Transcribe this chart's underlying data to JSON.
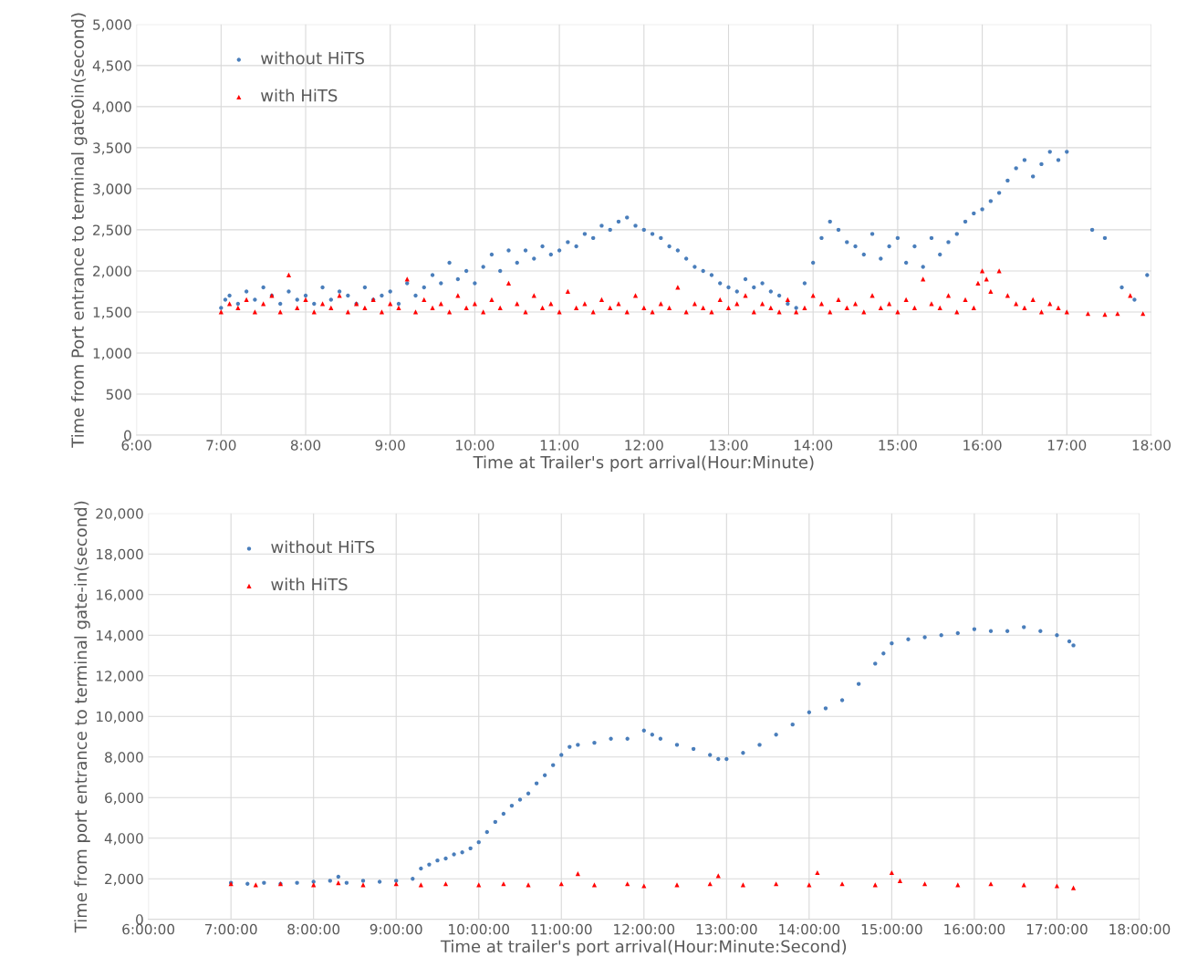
{
  "chart_data": [
    {
      "type": "scatter",
      "xlabel": "Time at Trailer's port arrival(Hour:Minute)",
      "ylabel": "Time from Port entrance to terminal gate0in(second)",
      "xlim": [
        6,
        18
      ],
      "ylim": [
        0,
        5000
      ],
      "xticks": [
        {
          "value": 6,
          "label": "6:00"
        },
        {
          "value": 7,
          "label": "7:00"
        },
        {
          "value": 8,
          "label": "8:00"
        },
        {
          "value": 9,
          "label": "9:00"
        },
        {
          "value": 10,
          "label": "10:00"
        },
        {
          "value": 11,
          "label": "11:00"
        },
        {
          "value": 12,
          "label": "12:00"
        },
        {
          "value": 13,
          "label": "13:00"
        },
        {
          "value": 14,
          "label": "14:00"
        },
        {
          "value": 15,
          "label": "15:00"
        },
        {
          "value": 16,
          "label": "16:00"
        },
        {
          "value": 17,
          "label": "17:00"
        },
        {
          "value": 18,
          "label": "18:00"
        }
      ],
      "yticks": [
        0,
        500,
        {
          "value": 1000,
          "label": "1,000"
        },
        {
          "value": 1500,
          "label": "1,500"
        },
        {
          "value": 2000,
          "label": "2,000"
        },
        {
          "value": 2500,
          "label": "2,500"
        },
        {
          "value": 3000,
          "label": "3,000"
        },
        {
          "value": 3500,
          "label": "3,500"
        },
        {
          "value": 4000,
          "label": "4,000"
        },
        {
          "value": 4500,
          "label": "4,500"
        },
        {
          "value": 5000,
          "label": "5,000"
        }
      ],
      "grid": true,
      "legend": "top left",
      "series": [
        {
          "name": "without HiTS",
          "color": "#4a7ebb",
          "marker": "circle",
          "x": [
            7.0,
            7.05,
            7.1,
            7.2,
            7.3,
            7.4,
            7.5,
            7.6,
            7.7,
            7.8,
            7.9,
            8.0,
            8.1,
            8.2,
            8.3,
            8.4,
            8.5,
            8.6,
            8.7,
            8.8,
            8.9,
            9.0,
            9.1,
            9.2,
            9.3,
            9.4,
            9.5,
            9.6,
            9.7,
            9.8,
            9.9,
            10.0,
            10.1,
            10.2,
            10.3,
            10.4,
            10.5,
            10.6,
            10.7,
            10.8,
            10.9,
            11.0,
            11.1,
            11.2,
            11.3,
            11.4,
            11.5,
            11.6,
            11.7,
            11.8,
            11.9,
            12.0,
            12.1,
            12.2,
            12.3,
            12.4,
            12.5,
            12.6,
            12.7,
            12.8,
            12.9,
            13.0,
            13.1,
            13.2,
            13.3,
            13.4,
            13.5,
            13.6,
            13.7,
            13.8,
            13.9,
            14.0,
            14.1,
            14.2,
            14.3,
            14.4,
            14.5,
            14.6,
            14.7,
            14.8,
            14.9,
            15.0,
            15.1,
            15.2,
            15.3,
            15.4,
            15.5,
            15.6,
            15.7,
            15.8,
            15.9,
            16.0,
            16.1,
            16.2,
            16.3,
            16.4,
            16.5,
            16.6,
            16.7,
            16.8,
            16.9,
            17.0,
            17.3,
            17.45,
            17.65,
            17.8,
            17.95
          ],
          "values": [
            1550,
            1650,
            1700,
            1600,
            1750,
            1650,
            1800,
            1700,
            1600,
            1750,
            1650,
            1700,
            1600,
            1800,
            1650,
            1750,
            1700,
            1600,
            1800,
            1650,
            1700,
            1750,
            1600,
            1850,
            1700,
            1800,
            1950,
            1850,
            2100,
            1900,
            2000,
            1850,
            2050,
            2200,
            2000,
            2250,
            2100,
            2250,
            2150,
            2300,
            2200,
            2250,
            2350,
            2300,
            2450,
            2400,
            2550,
            2500,
            2600,
            2650,
            2550,
            2500,
            2450,
            2400,
            2300,
            2250,
            2150,
            2050,
            2000,
            1950,
            1850,
            1800,
            1750,
            1900,
            1800,
            1850,
            1750,
            1700,
            1600,
            1550,
            1850,
            2100,
            2400,
            2600,
            2500,
            2350,
            2300,
            2200,
            2450,
            2150,
            2300,
            2400,
            2100,
            2300,
            2050,
            2400,
            2200,
            2350,
            2450,
            2600,
            2700,
            2750,
            2850,
            2950,
            3100,
            3250,
            3350,
            3150,
            3300,
            3450,
            3350,
            3450,
            2500,
            2400,
            1800,
            1650,
            1950
          ]
        },
        {
          "name": "with HiTS",
          "color": "#ff0000",
          "marker": "triangle",
          "x": [
            7.0,
            7.1,
            7.2,
            7.3,
            7.4,
            7.5,
            7.6,
            7.7,
            7.8,
            7.9,
            8.0,
            8.1,
            8.2,
            8.3,
            8.4,
            8.5,
            8.6,
            8.7,
            8.8,
            8.9,
            9.0,
            9.1,
            9.2,
            9.3,
            9.4,
            9.5,
            9.6,
            9.7,
            9.8,
            9.9,
            10.0,
            10.1,
            10.2,
            10.3,
            10.4,
            10.5,
            10.6,
            10.7,
            10.8,
            10.9,
            11.0,
            11.1,
            11.2,
            11.3,
            11.4,
            11.5,
            11.6,
            11.7,
            11.8,
            11.9,
            12.0,
            12.1,
            12.2,
            12.3,
            12.4,
            12.5,
            12.6,
            12.7,
            12.8,
            12.9,
            13.0,
            13.1,
            13.2,
            13.3,
            13.4,
            13.5,
            13.6,
            13.7,
            13.8,
            13.9,
            14.0,
            14.1,
            14.2,
            14.3,
            14.4,
            14.5,
            14.6,
            14.7,
            14.8,
            14.9,
            15.0,
            15.1,
            15.2,
            15.3,
            15.4,
            15.5,
            15.6,
            15.7,
            15.8,
            15.9,
            15.95,
            16.0,
            16.05,
            16.1,
            16.2,
            16.3,
            16.4,
            16.5,
            16.6,
            16.7,
            16.8,
            16.9,
            17.0,
            17.25,
            17.45,
            17.6,
            17.75,
            17.9
          ],
          "values": [
            1500,
            1600,
            1550,
            1650,
            1500,
            1600,
            1700,
            1500,
            1950,
            1550,
            1650,
            1500,
            1600,
            1550,
            1700,
            1500,
            1600,
            1550,
            1650,
            1500,
            1600,
            1550,
            1900,
            1500,
            1650,
            1550,
            1600,
            1500,
            1700,
            1550,
            1600,
            1500,
            1650,
            1550,
            1850,
            1600,
            1500,
            1700,
            1550,
            1600,
            1500,
            1750,
            1550,
            1600,
            1500,
            1650,
            1550,
            1600,
            1500,
            1700,
            1550,
            1500,
            1600,
            1550,
            1800,
            1500,
            1600,
            1550,
            1500,
            1650,
            1550,
            1600,
            1700,
            1500,
            1600,
            1550,
            1500,
            1650,
            1500,
            1550,
            1700,
            1600,
            1500,
            1650,
            1550,
            1600,
            1500,
            1700,
            1550,
            1600,
            1500,
            1650,
            1550,
            1900,
            1600,
            1550,
            1700,
            1500,
            1650,
            1550,
            1850,
            2000,
            1900,
            1750,
            2000,
            1700,
            1600,
            1550,
            1650,
            1500,
            1600,
            1550,
            1500,
            1480,
            1470,
            1480,
            1700,
            1480
          ]
        }
      ]
    },
    {
      "type": "scatter",
      "xlabel": "Time at trailer's port arrival(Hour:Minute:Second)",
      "ylabel": "Time from port entrance to terminal gate-in(second)",
      "xlim": [
        6,
        18
      ],
      "ylim": [
        0,
        20000
      ],
      "xticks": [
        {
          "value": 6,
          "label": "6:00:00"
        },
        {
          "value": 7,
          "label": "7:00:00"
        },
        {
          "value": 8,
          "label": "8:00:00"
        },
        {
          "value": 9,
          "label": "9:00:00"
        },
        {
          "value": 10,
          "label": "10:00:00"
        },
        {
          "value": 11,
          "label": "11:00:00"
        },
        {
          "value": 12,
          "label": "12:00:00"
        },
        {
          "value": 13,
          "label": "13:00:00"
        },
        {
          "value": 14,
          "label": "14:00:00"
        },
        {
          "value": 15,
          "label": "15:00:00"
        },
        {
          "value": 16,
          "label": "16:00:00"
        },
        {
          "value": 17,
          "label": "17:00:00"
        },
        {
          "value": 18,
          "label": "18:00:00"
        }
      ],
      "yticks": [
        0,
        {
          "value": 2000,
          "label": "2,000"
        },
        {
          "value": 4000,
          "label": "4,000"
        },
        {
          "value": 6000,
          "label": "6,000"
        },
        {
          "value": 8000,
          "label": "8,000"
        },
        {
          "value": 10000,
          "label": "10,000"
        },
        {
          "value": 12000,
          "label": "12,000"
        },
        {
          "value": 14000,
          "label": "14,000"
        },
        {
          "value": 16000,
          "label": "16,000"
        },
        {
          "value": 18000,
          "label": "18,000"
        },
        {
          "value": 20000,
          "label": "20,000"
        }
      ],
      "grid": true,
      "legend": "top left",
      "series": [
        {
          "name": "without HiTS",
          "color": "#4a7ebb",
          "marker": "circle",
          "x": [
            7.0,
            7.2,
            7.4,
            7.6,
            7.8,
            8.0,
            8.2,
            8.3,
            8.4,
            8.6,
            8.8,
            9.0,
            9.2,
            9.3,
            9.4,
            9.5,
            9.6,
            9.7,
            9.8,
            9.9,
            10.0,
            10.1,
            10.2,
            10.3,
            10.4,
            10.5,
            10.6,
            10.7,
            10.8,
            10.9,
            11.0,
            11.1,
            11.2,
            11.4,
            11.6,
            11.8,
            12.0,
            12.1,
            12.2,
            12.4,
            12.6,
            12.8,
            12.9,
            13.0,
            13.2,
            13.4,
            13.6,
            13.8,
            14.0,
            14.2,
            14.4,
            14.6,
            14.8,
            14.9,
            15.0,
            15.2,
            15.4,
            15.6,
            15.8,
            16.0,
            16.2,
            16.4,
            16.6,
            16.8,
            17.0,
            17.15,
            17.2
          ],
          "values": [
            1800,
            1750,
            1800,
            1750,
            1800,
            1850,
            1900,
            2100,
            1800,
            1900,
            1850,
            1900,
            2000,
            2500,
            2700,
            2900,
            3000,
            3200,
            3300,
            3500,
            3800,
            4300,
            4800,
            5200,
            5600,
            5900,
            6200,
            6700,
            7100,
            7600,
            8100,
            8500,
            8600,
            8700,
            8900,
            8900,
            9300,
            9100,
            8900,
            8600,
            8400,
            8100,
            7900,
            7900,
            8200,
            8600,
            9100,
            9600,
            10200,
            10400,
            10800,
            11600,
            12600,
            13100,
            13600,
            13800,
            13900,
            14000,
            14100,
            14300,
            14200,
            14200,
            14400,
            14200,
            14000,
            13700,
            13500
          ]
        },
        {
          "name": "with HiTS",
          "color": "#ff0000",
          "marker": "triangle",
          "x": [
            7.0,
            7.3,
            7.6,
            8.0,
            8.3,
            8.6,
            9.0,
            9.3,
            9.6,
            10.0,
            10.3,
            10.6,
            11.0,
            11.2,
            11.4,
            11.8,
            12.0,
            12.4,
            12.8,
            12.9,
            13.2,
            13.6,
            14.0,
            14.1,
            14.4,
            14.8,
            15.0,
            15.1,
            15.4,
            15.8,
            16.2,
            16.6,
            17.0,
            17.2
          ],
          "values": [
            1750,
            1700,
            1750,
            1700,
            1800,
            1700,
            1750,
            1700,
            1750,
            1700,
            1750,
            1700,
            1750,
            2250,
            1700,
            1750,
            1650,
            1700,
            1750,
            2150,
            1700,
            1750,
            1700,
            2300,
            1750,
            1700,
            2300,
            1900,
            1750,
            1700,
            1750,
            1700,
            1650,
            1550
          ]
        }
      ]
    }
  ]
}
